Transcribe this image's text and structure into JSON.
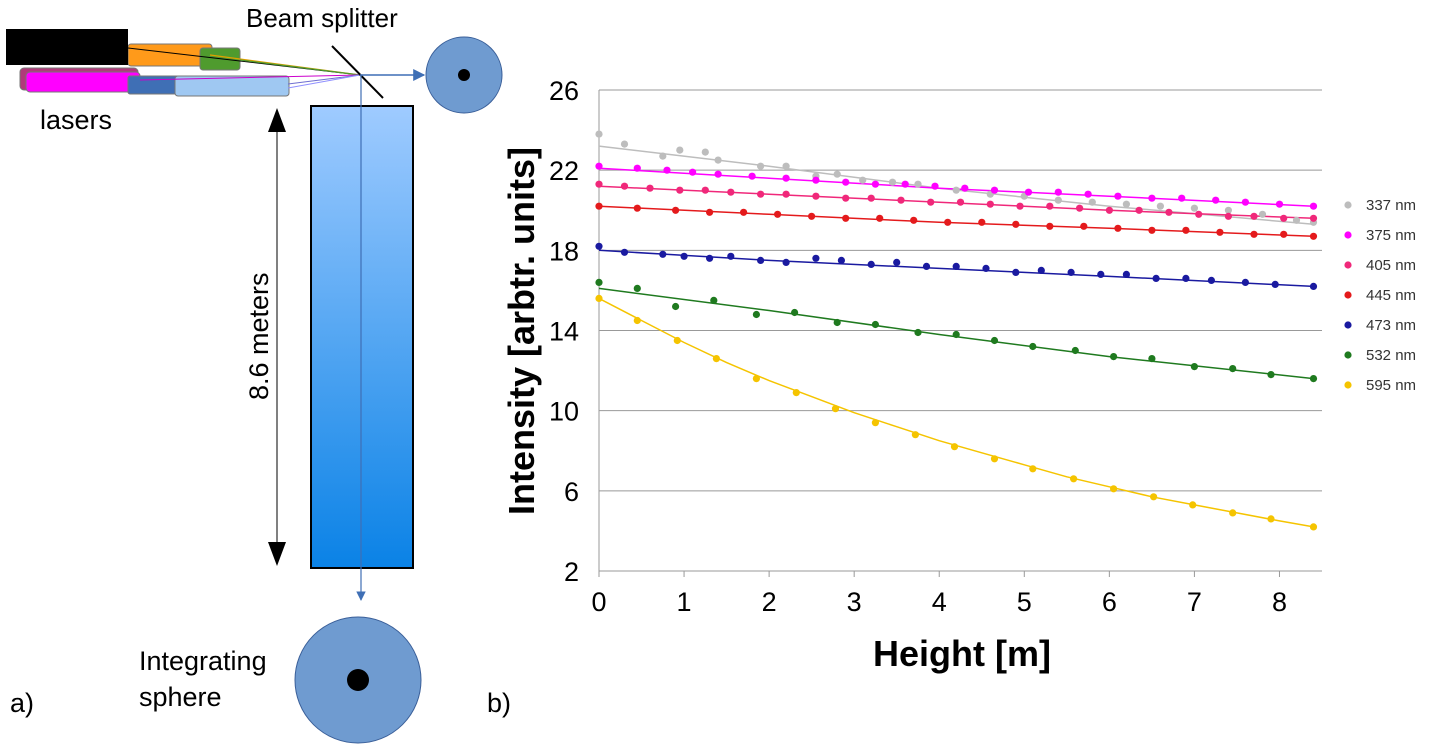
{
  "diagram": {
    "beam_splitter_label": "Beam splitter",
    "lasers_label": "lasers",
    "distance_label": "8.6 meters",
    "sphere_label_line1": "Integrating",
    "sphere_label_line2": "sphere",
    "panel_a_label": "a)",
    "panel_b_label": "b)",
    "laser_colors": [
      "#ff9a1a",
      "#4f9b2e",
      "#ff00ff",
      "#3f6fb5",
      "#9fc8f2"
    ],
    "tube_color_top": "#9fcbff",
    "tube_color_bottom": "#0a82e6",
    "sphere_color": "#6f9bd0"
  },
  "chart_data": {
    "type": "scatter",
    "title": "",
    "xlabel": "Height [m]",
    "ylabel": "Intensity [arbtr. units]",
    "xlim": [
      0,
      8.5
    ],
    "ylim": [
      2,
      26
    ],
    "xticks": [
      0,
      1,
      2,
      3,
      4,
      5,
      6,
      7,
      8
    ],
    "yticks": [
      2,
      6,
      10,
      14,
      18,
      22,
      26
    ],
    "grid": "horizontal",
    "legend_position": "right",
    "series": [
      {
        "name": "337 nm",
        "color": "#bdbdbd",
        "fit": [
          [
            0,
            23.2
          ],
          [
            2,
            22.2
          ],
          [
            4,
            21.1
          ],
          [
            6,
            20.2
          ],
          [
            8.4,
            19.3
          ]
        ],
        "points": [
          [
            0,
            23.8
          ],
          [
            0.3,
            23.3
          ],
          [
            0.75,
            22.7
          ],
          [
            0.95,
            23.0
          ],
          [
            1.25,
            22.9
          ],
          [
            1.4,
            22.5
          ],
          [
            1.9,
            22.2
          ],
          [
            2.2,
            22.2
          ],
          [
            2.55,
            21.7
          ],
          [
            2.8,
            21.8
          ],
          [
            3.1,
            21.5
          ],
          [
            3.45,
            21.4
          ],
          [
            3.75,
            21.3
          ],
          [
            4.2,
            21.0
          ],
          [
            4.6,
            20.8
          ],
          [
            5.0,
            20.7
          ],
          [
            5.4,
            20.5
          ],
          [
            5.8,
            20.4
          ],
          [
            6.2,
            20.3
          ],
          [
            6.6,
            20.2
          ],
          [
            7.0,
            20.1
          ],
          [
            7.4,
            20.0
          ],
          [
            7.8,
            19.8
          ],
          [
            8.2,
            19.5
          ],
          [
            8.4,
            19.4
          ]
        ]
      },
      {
        "name": "375 nm",
        "color": "#ff00ff",
        "fit": [
          [
            0,
            22.1
          ],
          [
            2,
            21.6
          ],
          [
            4,
            21.1
          ],
          [
            6,
            20.7
          ],
          [
            8.4,
            20.2
          ]
        ],
        "points": [
          [
            0,
            22.2
          ],
          [
            0.45,
            22.1
          ],
          [
            0.8,
            22.0
          ],
          [
            1.1,
            21.9
          ],
          [
            1.4,
            21.8
          ],
          [
            1.8,
            21.7
          ],
          [
            2.2,
            21.6
          ],
          [
            2.55,
            21.5
          ],
          [
            2.9,
            21.4
          ],
          [
            3.25,
            21.3
          ],
          [
            3.6,
            21.3
          ],
          [
            3.95,
            21.2
          ],
          [
            4.3,
            21.1
          ],
          [
            4.65,
            21.0
          ],
          [
            5.05,
            20.9
          ],
          [
            5.4,
            20.9
          ],
          [
            5.75,
            20.8
          ],
          [
            6.1,
            20.7
          ],
          [
            6.5,
            20.6
          ],
          [
            6.85,
            20.6
          ],
          [
            7.25,
            20.5
          ],
          [
            7.6,
            20.4
          ],
          [
            8.0,
            20.3
          ],
          [
            8.4,
            20.2
          ]
        ]
      },
      {
        "name": "405 nm",
        "color": "#f0287a",
        "fit": [
          [
            0,
            21.2
          ],
          [
            2,
            20.8
          ],
          [
            4,
            20.4
          ],
          [
            6,
            20.0
          ],
          [
            8.4,
            19.6
          ]
        ],
        "points": [
          [
            0,
            21.3
          ],
          [
            0.3,
            21.2
          ],
          [
            0.6,
            21.1
          ],
          [
            0.95,
            21.0
          ],
          [
            1.25,
            21.0
          ],
          [
            1.55,
            20.9
          ],
          [
            1.9,
            20.8
          ],
          [
            2.2,
            20.8
          ],
          [
            2.55,
            20.7
          ],
          [
            2.9,
            20.6
          ],
          [
            3.2,
            20.6
          ],
          [
            3.55,
            20.5
          ],
          [
            3.9,
            20.4
          ],
          [
            4.25,
            20.4
          ],
          [
            4.6,
            20.3
          ],
          [
            4.95,
            20.2
          ],
          [
            5.3,
            20.2
          ],
          [
            5.65,
            20.1
          ],
          [
            6.0,
            20.0
          ],
          [
            6.35,
            20.0
          ],
          [
            6.7,
            19.9
          ],
          [
            7.05,
            19.8
          ],
          [
            7.4,
            19.7
          ],
          [
            7.7,
            19.7
          ],
          [
            8.05,
            19.6
          ],
          [
            8.4,
            19.6
          ]
        ]
      },
      {
        "name": "445 nm",
        "color": "#e41a1c",
        "fit": [
          [
            0,
            20.2
          ],
          [
            2,
            19.8
          ],
          [
            4,
            19.4
          ],
          [
            6,
            19.1
          ],
          [
            8.4,
            18.7
          ]
        ],
        "points": [
          [
            0,
            20.2
          ],
          [
            0.45,
            20.1
          ],
          [
            0.9,
            20.0
          ],
          [
            1.3,
            19.9
          ],
          [
            1.7,
            19.9
          ],
          [
            2.1,
            19.8
          ],
          [
            2.5,
            19.7
          ],
          [
            2.9,
            19.6
          ],
          [
            3.3,
            19.6
          ],
          [
            3.7,
            19.5
          ],
          [
            4.1,
            19.4
          ],
          [
            4.5,
            19.4
          ],
          [
            4.9,
            19.3
          ],
          [
            5.3,
            19.2
          ],
          [
            5.7,
            19.2
          ],
          [
            6.1,
            19.1
          ],
          [
            6.5,
            19.0
          ],
          [
            6.9,
            19.0
          ],
          [
            7.3,
            18.9
          ],
          [
            7.7,
            18.8
          ],
          [
            8.05,
            18.8
          ],
          [
            8.4,
            18.7
          ]
        ]
      },
      {
        "name": "473 nm",
        "color": "#1a1aa0",
        "fit": [
          [
            0,
            18.0
          ],
          [
            2,
            17.5
          ],
          [
            4,
            17.1
          ],
          [
            6,
            16.7
          ],
          [
            8.4,
            16.2
          ]
        ],
        "points": [
          [
            0,
            18.2
          ],
          [
            0.3,
            17.9
          ],
          [
            0.75,
            17.8
          ],
          [
            1.0,
            17.7
          ],
          [
            1.3,
            17.6
          ],
          [
            1.55,
            17.7
          ],
          [
            1.9,
            17.5
          ],
          [
            2.2,
            17.4
          ],
          [
            2.55,
            17.6
          ],
          [
            2.85,
            17.5
          ],
          [
            3.2,
            17.3
          ],
          [
            3.5,
            17.4
          ],
          [
            3.85,
            17.2
          ],
          [
            4.2,
            17.2
          ],
          [
            4.55,
            17.1
          ],
          [
            4.9,
            16.9
          ],
          [
            5.2,
            17.0
          ],
          [
            5.55,
            16.9
          ],
          [
            5.9,
            16.8
          ],
          [
            6.2,
            16.8
          ],
          [
            6.55,
            16.6
          ],
          [
            6.9,
            16.6
          ],
          [
            7.2,
            16.5
          ],
          [
            7.6,
            16.4
          ],
          [
            7.95,
            16.3
          ],
          [
            8.4,
            16.2
          ]
        ]
      },
      {
        "name": "532 nm",
        "color": "#1f7a1f",
        "fit": [
          [
            0,
            16.1
          ],
          [
            2,
            15.0
          ],
          [
            4,
            13.8
          ],
          [
            6,
            12.7
          ],
          [
            8.4,
            11.6
          ]
        ],
        "points": [
          [
            0,
            16.4
          ],
          [
            0.45,
            16.1
          ],
          [
            0.9,
            15.2
          ],
          [
            1.35,
            15.5
          ],
          [
            1.85,
            14.8
          ],
          [
            2.3,
            14.9
          ],
          [
            2.8,
            14.4
          ],
          [
            3.25,
            14.3
          ],
          [
            3.75,
            13.9
          ],
          [
            4.2,
            13.8
          ],
          [
            4.65,
            13.5
          ],
          [
            5.1,
            13.2
          ],
          [
            5.6,
            13.0
          ],
          [
            6.05,
            12.7
          ],
          [
            6.5,
            12.6
          ],
          [
            7.0,
            12.2
          ],
          [
            7.45,
            12.1
          ],
          [
            7.9,
            11.8
          ],
          [
            8.4,
            11.6
          ]
        ]
      },
      {
        "name": "595 nm",
        "color": "#f5c400",
        "fit": [
          [
            0,
            15.6
          ],
          [
            0.5,
            14.5
          ],
          [
            1,
            13.4
          ],
          [
            1.5,
            12.4
          ],
          [
            2,
            11.5
          ],
          [
            2.5,
            10.7
          ],
          [
            3,
            9.9
          ],
          [
            3.5,
            9.2
          ],
          [
            4,
            8.5
          ],
          [
            4.5,
            7.9
          ],
          [
            5,
            7.3
          ],
          [
            5.5,
            6.7
          ],
          [
            6,
            6.2
          ],
          [
            6.5,
            5.7
          ],
          [
            7,
            5.3
          ],
          [
            7.5,
            4.9
          ],
          [
            8,
            4.5
          ],
          [
            8.4,
            4.2
          ]
        ],
        "points": [
          [
            0,
            15.6
          ],
          [
            0.45,
            14.5
          ],
          [
            0.92,
            13.5
          ],
          [
            1.38,
            12.6
          ],
          [
            1.85,
            11.6
          ],
          [
            2.32,
            10.9
          ],
          [
            2.78,
            10.1
          ],
          [
            3.25,
            9.4
          ],
          [
            3.72,
            8.8
          ],
          [
            4.18,
            8.2
          ],
          [
            4.65,
            7.6
          ],
          [
            5.1,
            7.1
          ],
          [
            5.58,
            6.6
          ],
          [
            6.05,
            6.1
          ],
          [
            6.52,
            5.7
          ],
          [
            6.98,
            5.3
          ],
          [
            7.45,
            4.9
          ],
          [
            7.9,
            4.6
          ],
          [
            8.4,
            4.2
          ]
        ]
      }
    ]
  }
}
